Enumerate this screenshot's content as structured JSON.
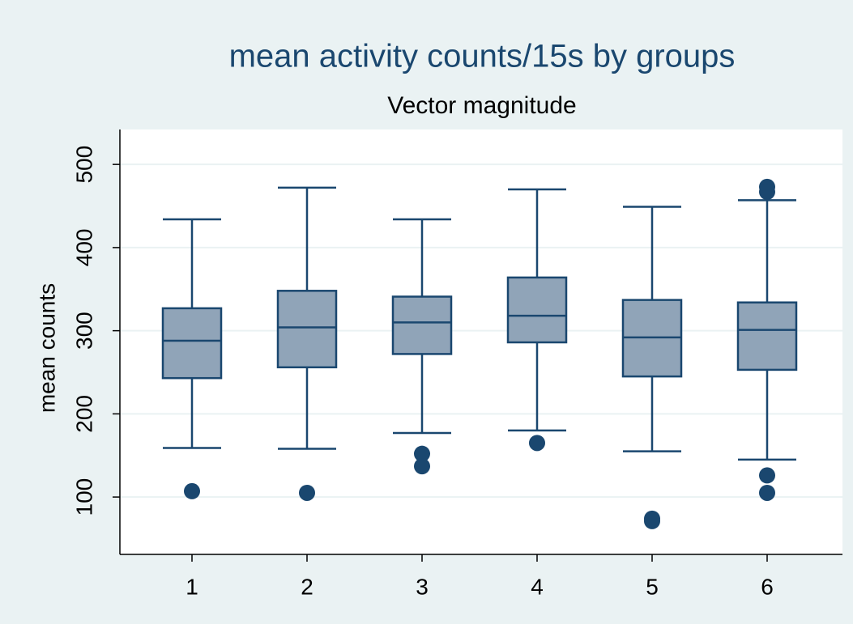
{
  "chart_data": {
    "type": "box",
    "title": "mean activity counts/15s by groups",
    "subtitle": "Vector magnitude",
    "y_label": "mean counts",
    "categories": [
      "1",
      "2",
      "3",
      "4",
      "5",
      "6"
    ],
    "color": "#1a476f",
    "box_fill": "#90a4b8",
    "ylim": [
      31,
      542
    ],
    "yticks": [
      100,
      200,
      300,
      400,
      500
    ],
    "grid": true,
    "boxes": [
      {
        "min": 159,
        "q1": 243,
        "median": 288,
        "q3": 327,
        "max": 434,
        "outliers": [
          107
        ]
      },
      {
        "min": 158,
        "q1": 256,
        "median": 304,
        "q3": 348,
        "max": 472,
        "outliers": [
          105
        ]
      },
      {
        "min": 177,
        "q1": 272,
        "median": 310,
        "q3": 341,
        "max": 434,
        "outliers": [
          152,
          137
        ]
      },
      {
        "min": 180,
        "q1": 286,
        "median": 318,
        "q3": 364,
        "max": 470,
        "outliers": [
          165
        ]
      },
      {
        "min": 155,
        "q1": 245,
        "median": 292,
        "q3": 337,
        "max": 449,
        "outliers": [
          74,
          71
        ]
      },
      {
        "min": 145,
        "q1": 253,
        "median": 301,
        "q3": 334,
        "max": 457,
        "outliers": [
          473,
          467,
          126,
          105
        ]
      }
    ]
  }
}
